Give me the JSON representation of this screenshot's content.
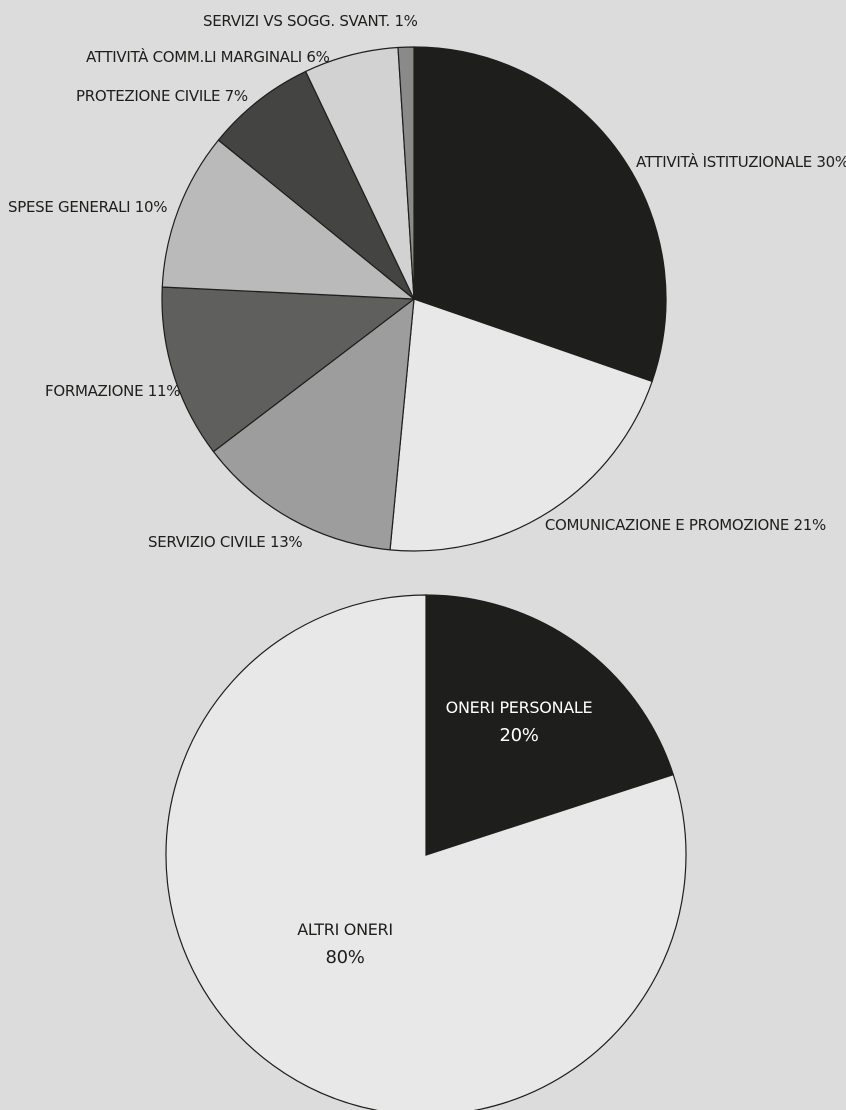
{
  "chart_data": [
    {
      "type": "pie",
      "title": "",
      "slices": [
        {
          "label": "ATTIVITÀ ISTITUZIONALE 30%",
          "value": 30,
          "color": "#1e1e1c"
        },
        {
          "label": "COMUNICAZIONE E PROMOZIONE 21%",
          "value": 21,
          "color": "#e8e8e8"
        },
        {
          "label": "SERVIZIO CIVILE 13%",
          "value": 13,
          "color": "#9d9d9d"
        },
        {
          "label": "FORMAZIONE 11%",
          "value": 11,
          "color": "#5f5f5e"
        },
        {
          "label": "SPESE GENERALI 10%",
          "value": 10,
          "color": "#bababa"
        },
        {
          "label": "PROTEZIONE CIVILE 7%",
          "value": 7,
          "color": "#444443"
        },
        {
          "label": "ATTIVITÀ COMM.LI MARGINALI 6%",
          "value": 6,
          "color": "#d2d2d2"
        },
        {
          "label": "SERVIZI VS SOGG. SVANT. 1%",
          "value": 1,
          "color": "#8a8a8a"
        }
      ]
    },
    {
      "type": "pie",
      "title": "",
      "slices": [
        {
          "label": "ONERI PERSONALE",
          "pct": "20%",
          "value": 20,
          "color": "#1e1e1c"
        },
        {
          "label": "ALTRI ONERI",
          "pct": "80%",
          "value": 80,
          "color": "#e8e8e8"
        }
      ]
    }
  ]
}
